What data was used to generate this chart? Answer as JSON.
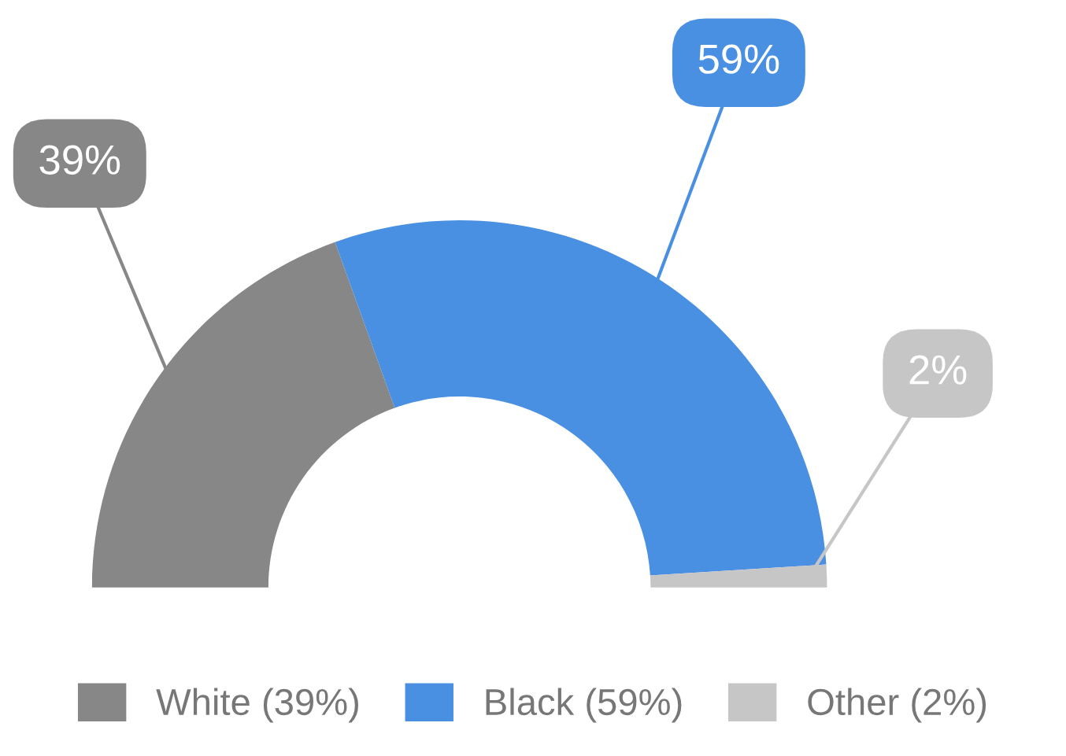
{
  "chart_data": {
    "type": "donut",
    "categories": [
      "White (39%)",
      "Black (59%)",
      "Other (2%)"
    ],
    "values": [
      39,
      59,
      2
    ],
    "colors": [
      "#878787",
      "#4a90e2",
      "#c6c6c6"
    ],
    "value_labels": [
      "39%",
      "59%",
      "2%"
    ],
    "legend": "bottom"
  }
}
